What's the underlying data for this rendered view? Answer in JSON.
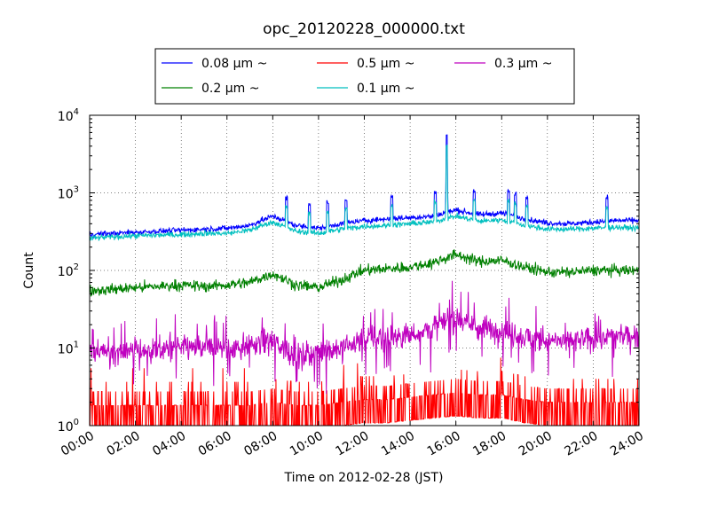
{
  "chart_data": {
    "type": "line",
    "title": "opc_20120228_000000.txt",
    "xlabel": "Time on 2012-02-28 (JST)",
    "ylabel": "Count",
    "y_scale": "log",
    "ylim": [
      1,
      10000
    ],
    "xlim": [
      "00:00",
      "24:00"
    ],
    "grid": true,
    "legend_position": "top-center",
    "x_ticks": [
      "00:00",
      "02:00",
      "04:00",
      "06:00",
      "08:00",
      "10:00",
      "12:00",
      "14:00",
      "16:00",
      "18:00",
      "20:00",
      "22:00",
      "24:00"
    ],
    "y_ticks": [
      {
        "base": "10",
        "exp": "0"
      },
      {
        "base": "10",
        "exp": "1"
      },
      {
        "base": "10",
        "exp": "2"
      },
      {
        "base": "10",
        "exp": "3"
      },
      {
        "base": "10",
        "exp": "4"
      }
    ],
    "x_hours": [
      0,
      1,
      2,
      3,
      4,
      5,
      6,
      7,
      8,
      9,
      10,
      11,
      12,
      13,
      14,
      15,
      16,
      17,
      18,
      19,
      20,
      21,
      22,
      23,
      24
    ],
    "series": [
      {
        "name": "0.08 μm ~",
        "color": "#0000ff",
        "values": [
          290,
          300,
          310,
          320,
          330,
          340,
          350,
          380,
          500,
          380,
          350,
          400,
          440,
          460,
          480,
          500,
          600,
          520,
          550,
          460,
          410,
          400,
          420,
          440,
          440
        ]
      },
      {
        "name": "0.1 μm ~",
        "color": "#00bfbf",
        "values": [
          260,
          270,
          280,
          285,
          290,
          300,
          300,
          330,
          420,
          320,
          300,
          340,
          370,
          380,
          400,
          420,
          500,
          430,
          450,
          380,
          340,
          340,
          350,
          360,
          350
        ]
      },
      {
        "name": "0.2 μm ~",
        "color": "#008000",
        "values": [
          55,
          57,
          60,
          62,
          65,
          62,
          65,
          70,
          90,
          65,
          60,
          75,
          100,
          105,
          110,
          125,
          160,
          130,
          135,
          110,
          95,
          95,
          100,
          100,
          100
        ]
      },
      {
        "name": "0.3 μm ~",
        "color": "#bf00bf",
        "values": [
          9,
          9,
          9.5,
          9.5,
          10,
          10,
          10,
          11,
          12,
          8,
          9,
          10,
          13,
          14,
          15,
          18,
          25,
          18,
          17,
          14,
          12,
          12,
          13,
          14,
          15
        ]
      },
      {
        "name": "0.5 μm ~",
        "color": "#ff0000",
        "values": [
          1.1,
          1.1,
          1.1,
          1.1,
          1.1,
          1.1,
          1.1,
          1.1,
          1.2,
          1.1,
          1.1,
          1.2,
          1.3,
          1.3,
          1.4,
          1.5,
          1.6,
          1.5,
          1.5,
          1.3,
          1.2,
          1.2,
          1.2,
          1.2,
          1.2
        ]
      }
    ],
    "legend_order": [
      0,
      2,
      4,
      1,
      3
    ]
  }
}
